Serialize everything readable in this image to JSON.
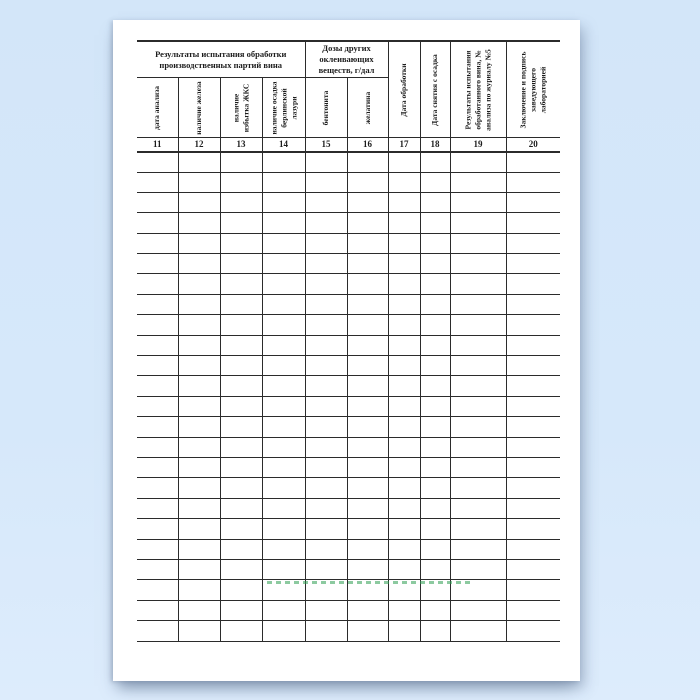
{
  "document": {
    "table": {
      "group_headers": [
        {
          "label": "Результаты испытания обработки производственных партий вина"
        },
        {
          "label": "Дозы других оклеивающих веществ, г/дал"
        }
      ],
      "sub_columns": [
        {
          "label": "дата анализа"
        },
        {
          "label": "наличие железа"
        },
        {
          "label": "наличие избытка ЖКС"
        },
        {
          "label": "наличие осадка берлинской лазури"
        },
        {
          "label": "бентонита"
        },
        {
          "label": "желатина"
        }
      ],
      "full_height_columns": [
        {
          "label": "Дата обработки"
        },
        {
          "label": "Дата снятия с осадка"
        },
        {
          "label": "Результаты испытания обработанного вина, № анализа по журналу №5"
        },
        {
          "label": "Заключение и подпись заведующего лабораторией"
        }
      ],
      "column_numbers": [
        "11",
        "12",
        "13",
        "14",
        "15",
        "16",
        "17",
        "18",
        "19",
        "20"
      ],
      "empty_row_count": 24,
      "cells_content": ""
    },
    "watermark": {
      "color": "#2f9e52"
    },
    "colors": {
      "background": "#d6e8fa",
      "paper": "#ffffff",
      "line": "#2b2b2b",
      "text": "#1c1c1c"
    }
  }
}
